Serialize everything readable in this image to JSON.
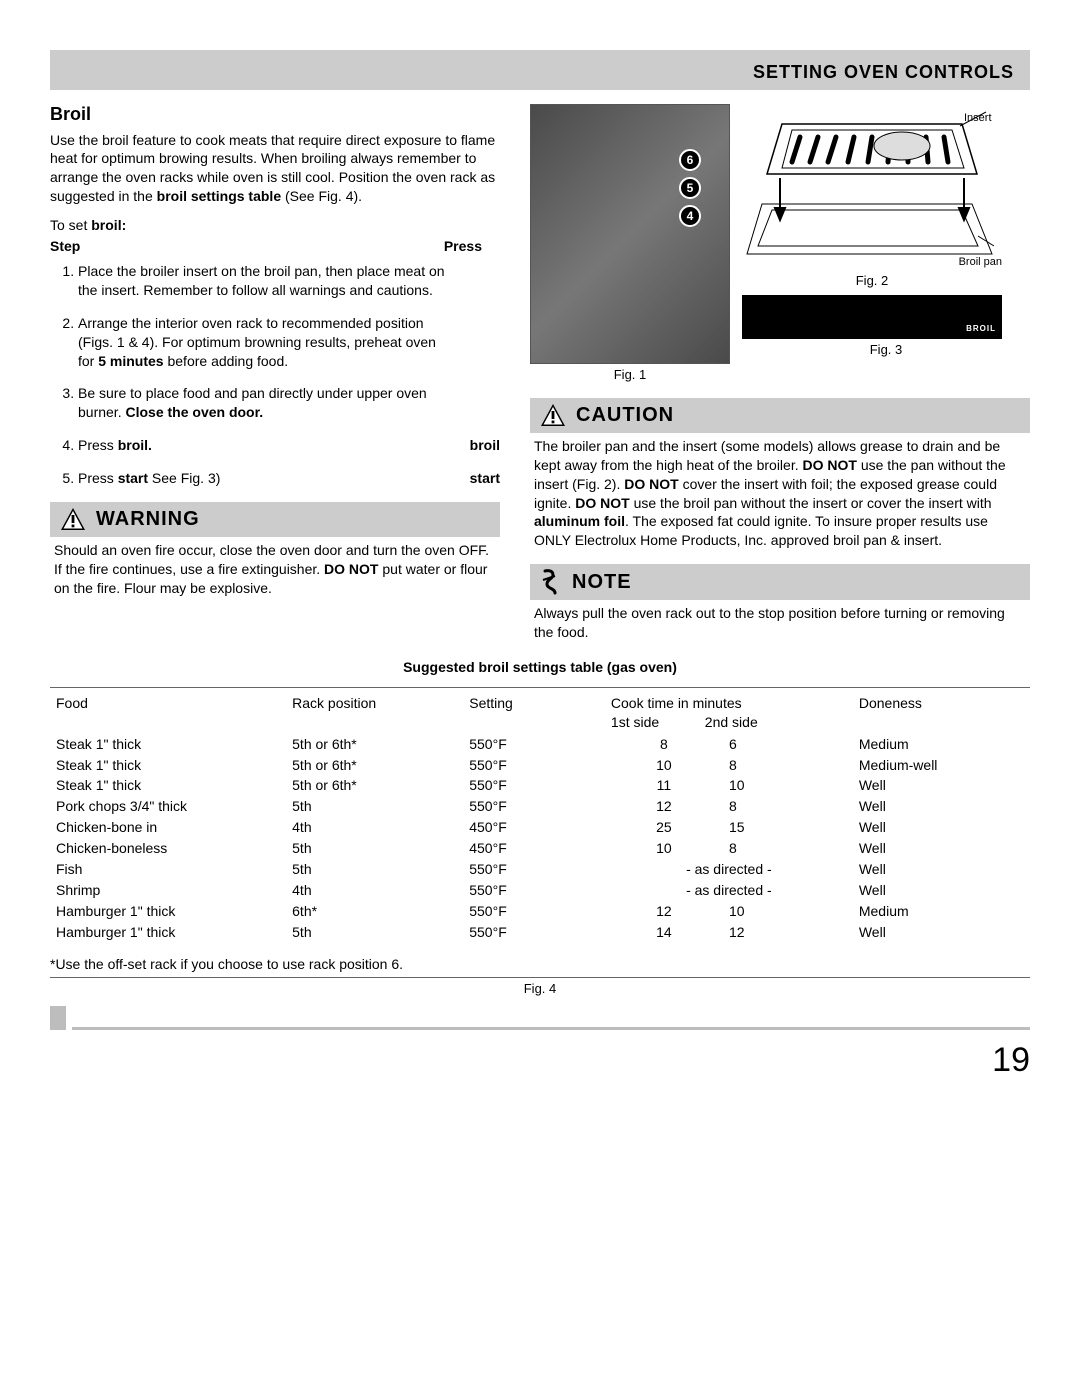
{
  "header": {
    "title": "SETTING OVEN CONTROLS"
  },
  "broil": {
    "heading": "Broil",
    "intro": "Use the broil feature to cook meats that require direct exposure to flame heat for optimum browing results. When broiling always remember to arrange the oven racks while oven is still cool. Position the oven rack as suggested in the ",
    "intro_bold": "broil settings table",
    "intro_tail": " (See Fig. 4).",
    "toset_pre": "To set ",
    "toset_bold": "broil:",
    "col_step": "Step",
    "col_press": "Press",
    "steps": [
      {
        "text": "Place the broiler insert on the broil pan, then place meat on the insert. Remember to follow all warnings and cautions.",
        "press": ""
      },
      {
        "text": "Arrange the interior oven rack to recommended position (Figs. 1 & 4). For optimum browning results, preheat oven for ",
        "bold1": "5 minutes",
        "tail": " before adding food.",
        "press": ""
      },
      {
        "text": "Be sure to place food and pan directly under upper oven burner. ",
        "bold1": "Close the oven door.",
        "press": ""
      },
      {
        "text": "Press ",
        "bold1": "broil.",
        "press": "broil"
      },
      {
        "text": "Press ",
        "bold1": "start",
        "tail": " See Fig. 3)",
        "press": "start",
        "pretail": " (",
        "posttail": ""
      }
    ],
    "step5_text_a": "Press ",
    "step5_bold": "start",
    "step5_text_b": " See Fig. 3)"
  },
  "warning": {
    "label": "WARNING",
    "body_a": "Should an oven fire occur, close the oven door and turn the oven OFF. If the fire continues, use a fire extinguisher. ",
    "body_bold": "DO NOT",
    "body_b": " put water or flour on the fire. Flour may be explosive."
  },
  "caution": {
    "label": "CAUTION",
    "body_a": "The broiler pan and the insert (some models) allows grease to drain and be kept away from the high heat of the broiler. ",
    "b1": "DO NOT",
    "body_b": " use the pan without the insert (Fig. 2). ",
    "b2": "DO NOT",
    "body_c": " cover the insert with foil; the exposed grease could ignite. ",
    "b3": "DO NOT",
    "body_d": " use the broil pan without the insert or cover the insert with ",
    "b4": "aluminum foil",
    "body_e": ". The exposed fat could ignite. To insure proper results use ONLY Electrolux Home Products, Inc. approved broil pan & insert."
  },
  "note": {
    "label": "NOTE",
    "body": "Always pull the oven rack out to the stop position before turning or removing the food."
  },
  "figs": {
    "fig1": "Fig. 1",
    "fig2": "Fig. 2",
    "fig3": "Fig. 3",
    "fig4": "Fig. 4",
    "rack_labels": [
      "6",
      "5",
      "4"
    ],
    "insert_label": "Insert",
    "broilpan_label": "Broil pan",
    "display_broil": "BROIL"
  },
  "table": {
    "title": "Suggested broil settings table (gas oven)",
    "head": {
      "food": "Food",
      "rack": "Rack position",
      "setting": "Setting",
      "cook": "Cook time in minutes",
      "first": "1st side",
      "second": "2nd side",
      "done": "Doneness"
    },
    "rows": [
      {
        "food": "Steak 1\" thick",
        "rack": "5th or 6th*",
        "set": "550°F",
        "t1": "8",
        "t2": "6",
        "done": "Medium"
      },
      {
        "food": "Steak 1\" thick",
        "rack": "5th or 6th*",
        "set": "550°F",
        "t1": "10",
        "t2": "8",
        "done": "Medium-well"
      },
      {
        "food": "Steak 1\" thick",
        "rack": "5th or 6th*",
        "set": "550°F",
        "t1": "11",
        "t2": "10",
        "done": "Well"
      },
      {
        "food": "Pork chops 3/4\" thick",
        "rack": "5th",
        "set": "550°F",
        "t1": "12",
        "t2": "8",
        "done": "Well"
      },
      {
        "food": "Chicken-bone in",
        "rack": "4th",
        "set": "450°F",
        "t1": "25",
        "t2": "15",
        "done": "Well"
      },
      {
        "food": "Chicken-boneless",
        "rack": "5th",
        "set": "450°F",
        "t1": "10",
        "t2": "8",
        "done": "Well"
      },
      {
        "food": "Fish",
        "rack": "5th",
        "set": "550°F",
        "t1": "- as directed -",
        "t2": "",
        "done": "Well",
        "asdir": true
      },
      {
        "food": "Shrimp",
        "rack": "4th",
        "set": "550°F",
        "t1": "- as directed -",
        "t2": "",
        "done": "Well",
        "asdir": true
      },
      {
        "food": "Hamburger 1\" thick",
        "rack": "6th*",
        "set": "550°F",
        "t1": "12",
        "t2": "10",
        "done": "Medium"
      },
      {
        "food": "Hamburger 1\" thick",
        "rack": "5th",
        "set": "550°F",
        "t1": "14",
        "t2": "12",
        "done": "Well"
      }
    ],
    "footnote": "*Use the off-set rack if you choose to use rack position 6."
  },
  "page_number": "19"
}
